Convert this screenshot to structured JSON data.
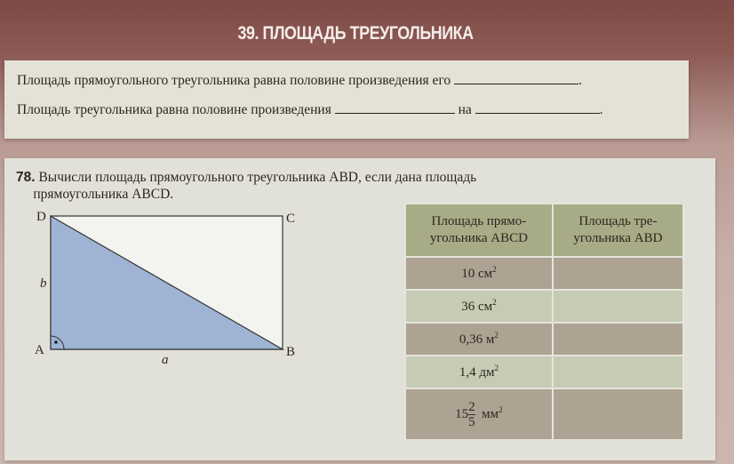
{
  "title": "39. ПЛОЩАДЬ ТРЕУГОЛЬНИКА",
  "rules": [
    {
      "text": "Площадь прямоугольного треугольника равна половине произведения его"
    },
    {
      "text": "Площадь треугольника равна половине произведения",
      "middle": "на"
    }
  ],
  "exercise": {
    "number": "78.",
    "text_line1": "Вычисли площадь прямоугольного треугольника ABD, если дана площадь",
    "text_line2": "прямоугольника ABCD."
  },
  "figure": {
    "labels": {
      "A": "A",
      "B": "B",
      "C": "C",
      "D": "D",
      "a": "a",
      "b": "b"
    },
    "fill_color": "#9fb4d4"
  },
  "table": {
    "headers": [
      "Площадь прямо-угольника ABCD",
      "Площадь тре-угольника ABD"
    ],
    "rows": [
      {
        "value": "10",
        "unit": "см",
        "sup": "2"
      },
      {
        "value": "36",
        "unit": "см",
        "sup": "2"
      },
      {
        "value": "0,36",
        "unit": "м",
        "sup": "2"
      },
      {
        "value": "1,4",
        "unit": "дм",
        "sup": "2"
      },
      {
        "whole": "15",
        "num": "2",
        "den": "5",
        "unit": "мм",
        "sup": "2"
      }
    ]
  }
}
